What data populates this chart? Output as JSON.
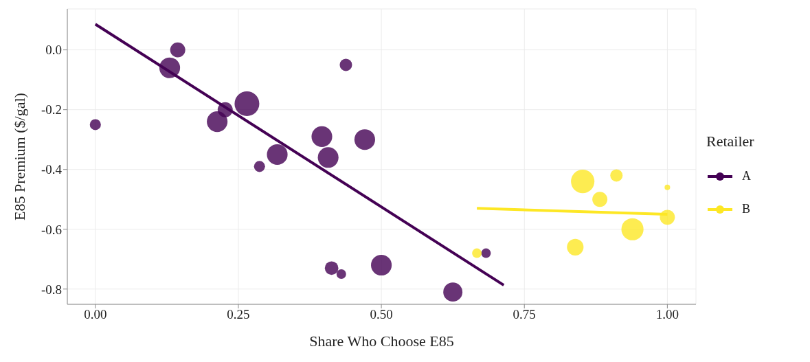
{
  "chart_data": {
    "type": "bubble",
    "xlabel": "Share Who Choose E85",
    "ylabel": "E85 Premium ($/gal)",
    "legend_title": "Retailer",
    "legend": "right",
    "grid": true,
    "xlim": [
      -0.049,
      1.05
    ],
    "ylim": [
      -0.851,
      0.137
    ],
    "xticks": [
      {
        "value": 0,
        "label": "0.00"
      },
      {
        "value": 0.25,
        "label": "0.25"
      },
      {
        "value": 0.5,
        "label": "0.50"
      },
      {
        "value": 0.75,
        "label": "0.75"
      },
      {
        "value": 1,
        "label": "1.00"
      }
    ],
    "yticks": [
      {
        "value": 0,
        "label": "0.0"
      },
      {
        "value": -0.2,
        "label": "-0.2"
      },
      {
        "value": -0.4,
        "label": "-0.4"
      },
      {
        "value": -0.6,
        "label": "-0.6"
      },
      {
        "value": -0.8,
        "label": "-0.8"
      }
    ],
    "series": [
      {
        "name": "A",
        "type": "bubble",
        "marker": "circle",
        "color": "#440154",
        "x": [
          0,
          0.13,
          0.144,
          0.227,
          0.213,
          0.265,
          0.287,
          0.318,
          0.396,
          0.407,
          0.471,
          0.438,
          0.43,
          0.413,
          0.5,
          0.625,
          0.683
        ],
        "values": [
          -0.25,
          -0.06,
          0,
          -0.2,
          -0.24,
          -0.18,
          -0.39,
          -0.35,
          -0.29,
          -0.36,
          -0.3,
          -0.05,
          -0.75,
          -0.73,
          -0.72,
          -0.81,
          -0.68
        ],
        "sizes": [
          0.2,
          0.7,
          0.37,
          0.37,
          0.7,
          1,
          0.2,
          0.7,
          0.7,
          0.7,
          0.7,
          0.25,
          0.15,
          0.3,
          0.7,
          0.6,
          0.15
        ]
      },
      {
        "name": "B",
        "type": "bubble",
        "marker": "circle",
        "color": "#fde725",
        "x": [
          0.667,
          0.839,
          0.852,
          0.882,
          0.911,
          0.939,
          1,
          1
        ],
        "values": [
          -0.68,
          -0.66,
          -0.44,
          -0.5,
          -0.42,
          -0.6,
          -0.46,
          -0.56
        ],
        "sizes": [
          0.15,
          0.45,
          0.9,
          0.37,
          0.25,
          0.8,
          0.05,
          0.37
        ]
      },
      {
        "type": "line",
        "marker": "none",
        "color": "#440154",
        "x": [
          0,
          0.714
        ],
        "values": [
          0.086,
          -0.787
        ]
      },
      {
        "type": "line",
        "marker": "none",
        "color": "#fde725",
        "x": [
          0.667,
          1
        ],
        "values": [
          -0.53,
          -0.55
        ]
      }
    ]
  }
}
